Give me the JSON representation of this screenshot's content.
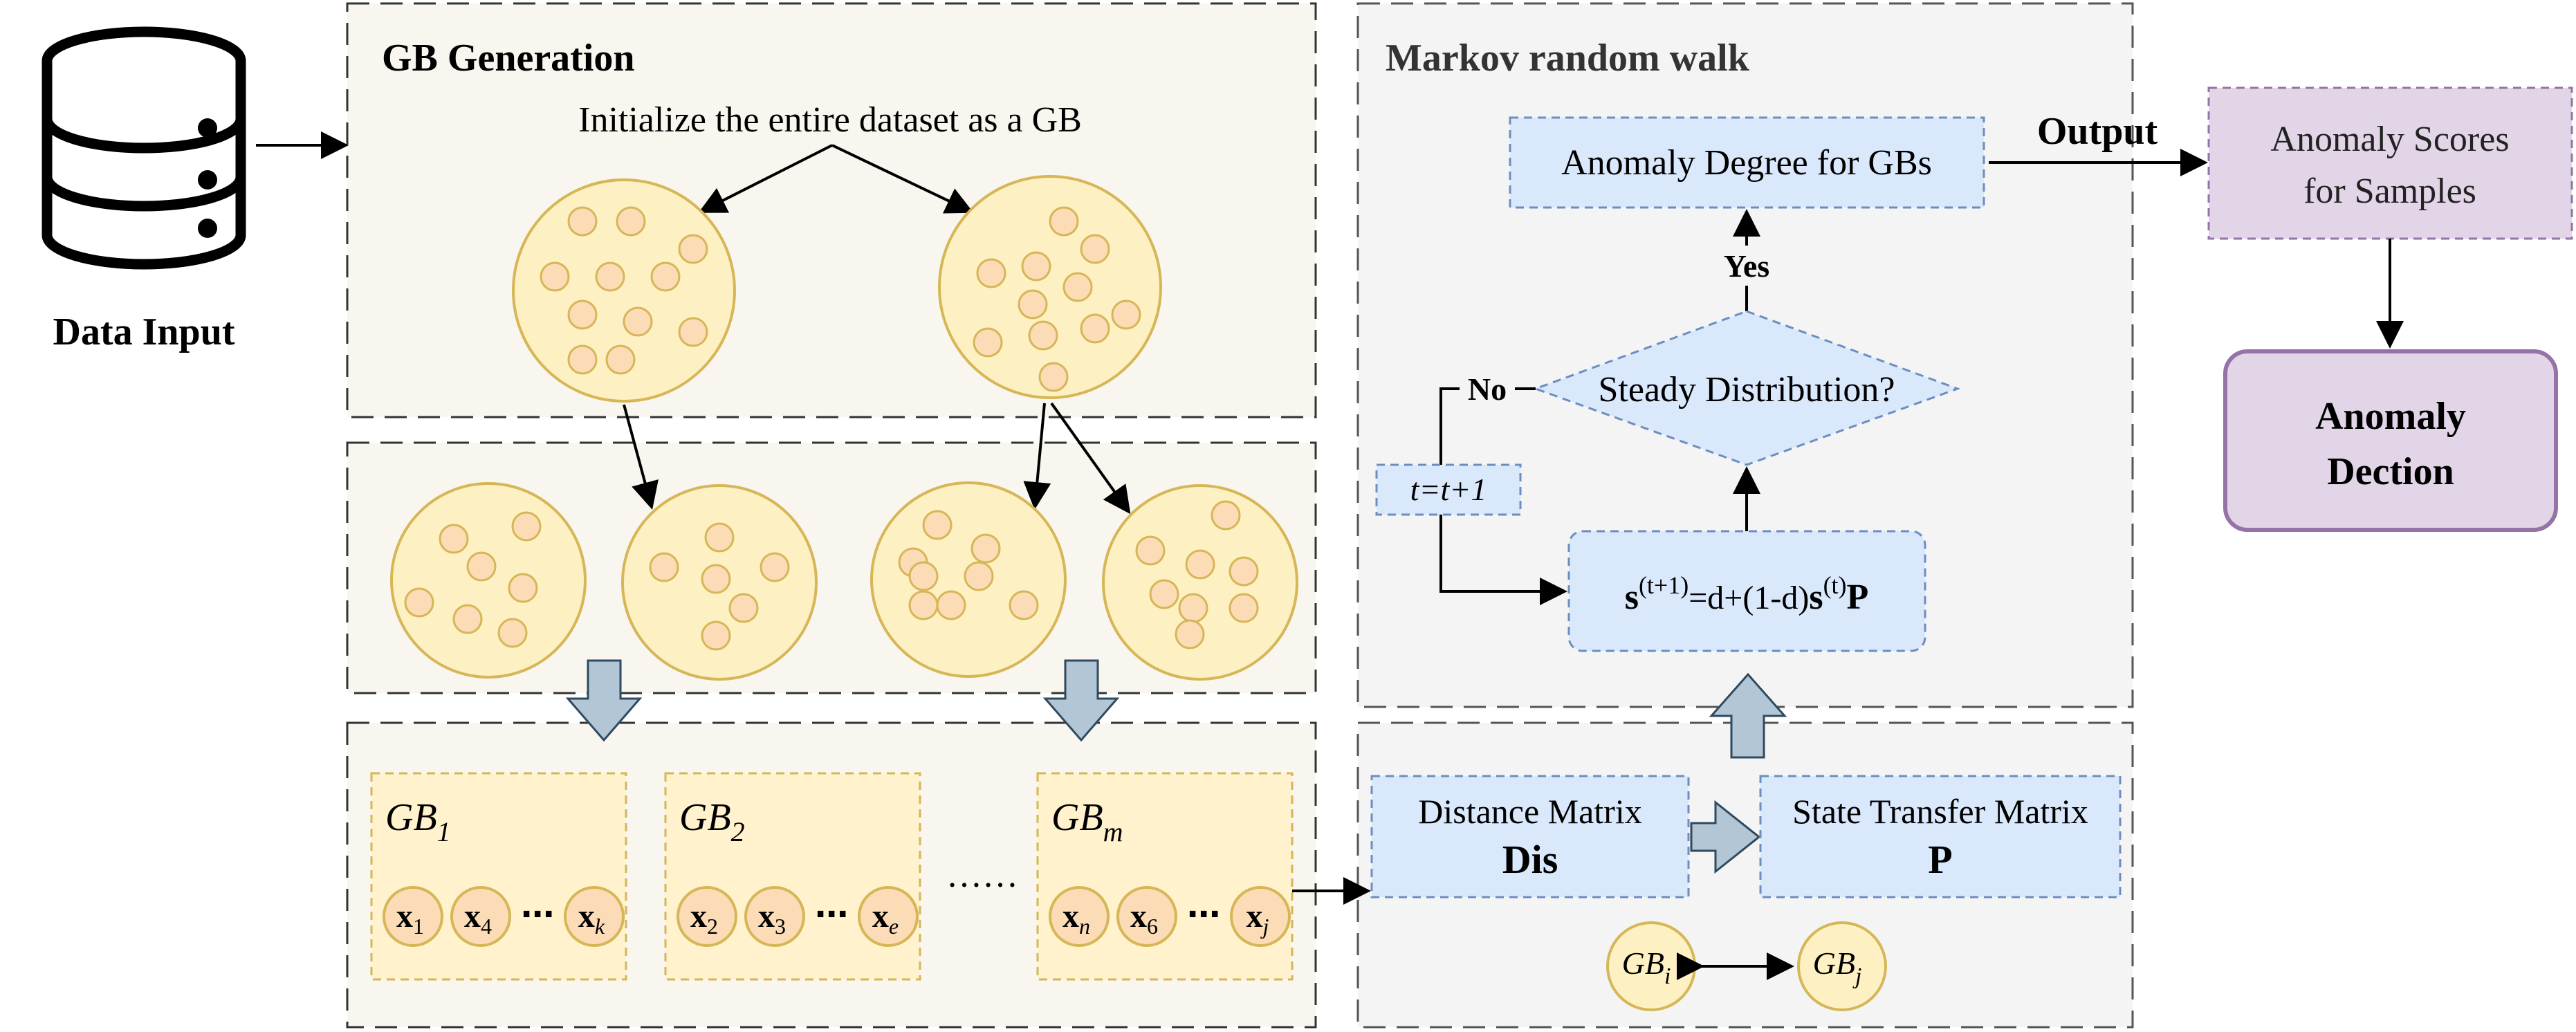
{
  "input": {
    "label": "Data Input"
  },
  "gb_generation": {
    "title": "GB Generation",
    "init_text": "Initialize the entire dataset as a GB"
  },
  "gb_list": {
    "items": [
      {
        "name": "GB",
        "sub": "1",
        "samples": [
          {
            "base": "x",
            "sub": "1"
          },
          {
            "base": "x",
            "sub": "4"
          },
          {
            "base": "x",
            "sub": "k"
          }
        ]
      },
      {
        "name": "GB",
        "sub": "2",
        "samples": [
          {
            "base": "x",
            "sub": "2"
          },
          {
            "base": "x",
            "sub": "3"
          },
          {
            "base": "x",
            "sub": "e"
          }
        ]
      },
      {
        "name": "GB",
        "sub": "m",
        "samples": [
          {
            "base": "x",
            "sub": "n"
          },
          {
            "base": "x",
            "sub": "6"
          },
          {
            "base": "x",
            "sub": "j"
          }
        ]
      }
    ],
    "ellipsis": "……",
    "sample_dots": "⋯"
  },
  "markov": {
    "title": "Markov random walk",
    "anomaly_degree": "Anomaly Degree for GBs",
    "yes": "Yes",
    "no": "No",
    "steady": "Steady Distribution?",
    "t_update": "t=t+1",
    "formula": {
      "s": "s",
      "sup1": "(t+1)",
      "mid": "=d+(1-d)",
      "s2": "s",
      "sup2": "(t)",
      "p": "P"
    }
  },
  "matrices": {
    "distance_label": "Distance Matrix",
    "distance_symbol": "Dis",
    "transfer_label": "State Transfer Matrix",
    "transfer_symbol": "P",
    "gb_i": {
      "base": "GB",
      "sub": "i"
    },
    "gb_j": {
      "base": "GB",
      "sub": "j"
    }
  },
  "output": {
    "label": "Output",
    "scores_line1": "Anomaly Scores",
    "scores_line2": "for Samples",
    "detection_line1": "Anomaly",
    "detection_line2": "Dection"
  },
  "colors": {
    "gb_panel_bg": "#f8f6ee",
    "markov_panel_bg": "#f4f4f4",
    "ball_fill": "#fdf0c2",
    "ball_stroke": "#d6b656",
    "point_fill": "#fcdcb6",
    "blue_fill": "#dae8fc",
    "blue_stroke": "#6c8ebf",
    "purple_fill": "#e1d5e7",
    "purple_stroke": "#9673a6",
    "gb_box_fill": "#fff2cc",
    "block_arrow_fill": "#b3c6d6",
    "block_arrow_stroke": "#2f4a5e"
  }
}
